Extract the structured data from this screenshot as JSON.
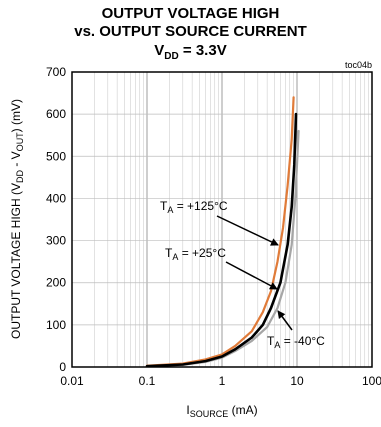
{
  "chart_data": {
    "type": "line",
    "title": {
      "line1": "OUTPUT VOLTAGE HIGH",
      "line2": "vs. OUTPUT SOURCE CURRENT",
      "line3_main": "V",
      "line3_sub": "DD",
      "line3_rest": " = 3.3V"
    },
    "code": "toc04b",
    "xlabel": {
      "main": "I",
      "sub": "SOURCE",
      "rest": " (mA)"
    },
    "ylabel": {
      "p1": "OUTPUT VOLTAGE HIGH (V",
      "s1": "DD",
      "p2": " - V",
      "s2": "OUT",
      "p3": ") (mV)"
    },
    "x_scale": "log",
    "xlim": [
      0.01,
      100
    ],
    "ylim": [
      0,
      700
    ],
    "x_ticks": [
      0.01,
      0.1,
      1,
      10,
      100
    ],
    "x_tick_labels": [
      "0.01",
      "0.1",
      "1",
      "10",
      "100"
    ],
    "y_ticks": [
      0,
      100,
      200,
      300,
      400,
      500,
      600,
      700
    ],
    "y_tick_labels": [
      "0",
      "100",
      "200",
      "300",
      "400",
      "500",
      "600",
      "700"
    ],
    "grid": true,
    "series": [
      {
        "name": "T_A = +125°C",
        "label_main": "T",
        "label_sub": "A",
        "label_rest": " = +125°C",
        "color": "#e07b39",
        "points": [
          [
            0.1,
            3
          ],
          [
            0.3,
            8
          ],
          [
            0.6,
            18
          ],
          [
            1.0,
            30
          ],
          [
            1.5,
            50
          ],
          [
            2.5,
            85
          ],
          [
            3.5,
            130
          ],
          [
            4.5,
            180
          ],
          [
            5.5,
            250
          ],
          [
            6.5,
            330
          ],
          [
            7.5,
            430
          ],
          [
            8.5,
            540
          ],
          [
            9.0,
            640
          ]
        ]
      },
      {
        "name": "T_A = +25°C",
        "label_main": "T",
        "label_sub": "A",
        "label_rest": " = +25°C",
        "color": "#000000",
        "points": [
          [
            0.1,
            2
          ],
          [
            0.3,
            6
          ],
          [
            0.6,
            14
          ],
          [
            1.0,
            25
          ],
          [
            1.5,
            42
          ],
          [
            2.5,
            70
          ],
          [
            3.5,
            100
          ],
          [
            4.5,
            140
          ],
          [
            6.0,
            200
          ],
          [
            7.5,
            290
          ],
          [
            8.5,
            380
          ],
          [
            9.2,
            480
          ],
          [
            9.7,
            600
          ]
        ]
      },
      {
        "name": "T_A = -40°C",
        "label_main": "T",
        "label_sub": "A",
        "label_rest": " = -40°C",
        "color": "#a6a6a6",
        "points": [
          [
            0.1,
            2
          ],
          [
            0.3,
            5
          ],
          [
            0.6,
            12
          ],
          [
            1.0,
            22
          ],
          [
            1.5,
            38
          ],
          [
            2.5,
            62
          ],
          [
            4.0,
            95
          ],
          [
            5.5,
            140
          ],
          [
            7.0,
            200
          ],
          [
            8.5,
            290
          ],
          [
            9.5,
            400
          ],
          [
            10.0,
            480
          ],
          [
            10.5,
            560
          ]
        ]
      }
    ]
  }
}
